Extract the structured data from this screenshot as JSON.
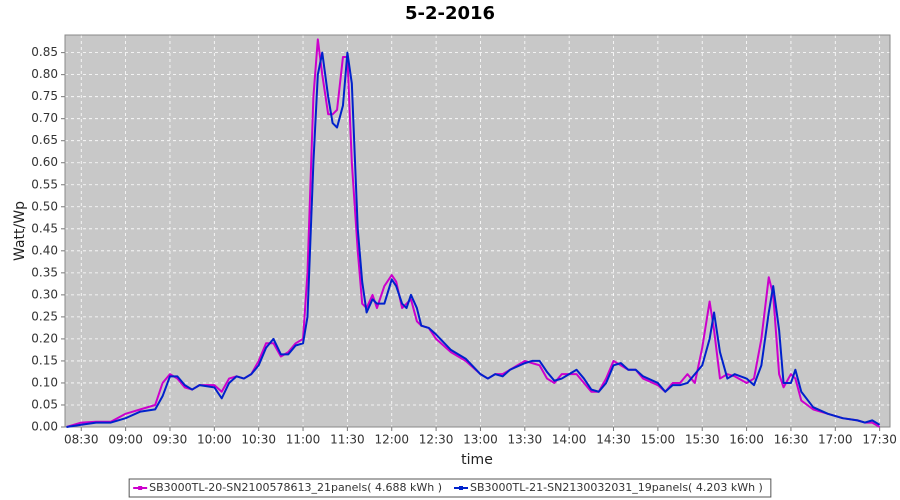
{
  "chart_data": {
    "type": "line",
    "title": "5-2-2016",
    "x_label": "time",
    "y_label": "Watt/Wp",
    "x": [
      "08:20",
      "08:30",
      "08:40",
      "08:50",
      "09:00",
      "09:10",
      "09:20",
      "09:25",
      "09:30",
      "09:35",
      "09:40",
      "09:45",
      "09:50",
      "10:00",
      "10:05",
      "10:10",
      "10:15",
      "10:20",
      "10:25",
      "10:30",
      "10:35",
      "10:40",
      "10:45",
      "10:50",
      "10:55",
      "11:00",
      "11:03",
      "11:07",
      "11:10",
      "11:13",
      "11:17",
      "11:20",
      "11:23",
      "11:27",
      "11:30",
      "11:33",
      "11:37",
      "11:40",
      "11:43",
      "11:47",
      "11:50",
      "11:55",
      "12:00",
      "12:03",
      "12:07",
      "12:10",
      "12:13",
      "12:17",
      "12:20",
      "12:25",
      "12:30",
      "12:40",
      "12:50",
      "13:00",
      "13:05",
      "13:10",
      "13:15",
      "13:20",
      "13:30",
      "13:35",
      "13:40",
      "13:45",
      "13:50",
      "13:55",
      "14:00",
      "14:05",
      "14:10",
      "14:15",
      "14:20",
      "14:25",
      "14:30",
      "14:35",
      "14:40",
      "14:45",
      "14:50",
      "15:00",
      "15:05",
      "15:10",
      "15:15",
      "15:20",
      "15:25",
      "15:30",
      "15:35",
      "15:38",
      "15:42",
      "15:47",
      "15:52",
      "16:00",
      "16:05",
      "16:10",
      "16:15",
      "16:18",
      "16:22",
      "16:25",
      "16:30",
      "16:33",
      "16:37",
      "16:45",
      "16:55",
      "17:05",
      "17:15",
      "17:20",
      "17:25",
      "17:30"
    ],
    "series": [
      {
        "name": "SB3000TL-20-SN2100578613_21panels( 4.688 kWh )",
        "color": "#cc00cc",
        "values": [
          0.0,
          0.01,
          0.012,
          0.012,
          0.03,
          0.04,
          0.05,
          0.1,
          0.12,
          0.11,
          0.09,
          0.085,
          0.095,
          0.095,
          0.08,
          0.11,
          0.115,
          0.11,
          0.12,
          0.15,
          0.19,
          0.19,
          0.16,
          0.17,
          0.19,
          0.2,
          0.35,
          0.75,
          0.88,
          0.8,
          0.71,
          0.71,
          0.72,
          0.84,
          0.84,
          0.6,
          0.4,
          0.28,
          0.27,
          0.3,
          0.27,
          0.32,
          0.345,
          0.33,
          0.27,
          0.28,
          0.29,
          0.24,
          0.23,
          0.225,
          0.2,
          0.17,
          0.15,
          0.12,
          0.11,
          0.12,
          0.12,
          0.13,
          0.15,
          0.145,
          0.14,
          0.11,
          0.1,
          0.12,
          0.12,
          0.12,
          0.1,
          0.08,
          0.08,
          0.11,
          0.15,
          0.14,
          0.13,
          0.13,
          0.11,
          0.095,
          0.08,
          0.1,
          0.1,
          0.12,
          0.1,
          0.18,
          0.285,
          0.22,
          0.11,
          0.12,
          0.115,
          0.1,
          0.11,
          0.2,
          0.34,
          0.3,
          0.12,
          0.09,
          0.12,
          0.11,
          0.06,
          0.04,
          0.03,
          0.02,
          0.015,
          0.01,
          0.01,
          0.0
        ]
      },
      {
        "name": "SB3000TL-21-SN2130032031_19panels( 4.203 kWh )",
        "color": "#0022cc",
        "values": [
          0.0,
          0.005,
          0.01,
          0.01,
          0.02,
          0.035,
          0.04,
          0.07,
          0.115,
          0.115,
          0.095,
          0.085,
          0.095,
          0.09,
          0.065,
          0.1,
          0.115,
          0.11,
          0.12,
          0.14,
          0.18,
          0.2,
          0.165,
          0.165,
          0.185,
          0.19,
          0.25,
          0.6,
          0.8,
          0.85,
          0.75,
          0.69,
          0.68,
          0.73,
          0.85,
          0.78,
          0.45,
          0.33,
          0.26,
          0.29,
          0.28,
          0.28,
          0.335,
          0.32,
          0.28,
          0.27,
          0.3,
          0.27,
          0.23,
          0.225,
          0.21,
          0.175,
          0.155,
          0.12,
          0.11,
          0.12,
          0.115,
          0.13,
          0.145,
          0.15,
          0.15,
          0.125,
          0.105,
          0.11,
          0.12,
          0.13,
          0.11,
          0.085,
          0.08,
          0.1,
          0.14,
          0.145,
          0.13,
          0.13,
          0.115,
          0.1,
          0.08,
          0.095,
          0.095,
          0.1,
          0.12,
          0.14,
          0.2,
          0.26,
          0.17,
          0.11,
          0.12,
          0.11,
          0.095,
          0.14,
          0.26,
          0.32,
          0.22,
          0.1,
          0.1,
          0.13,
          0.08,
          0.045,
          0.03,
          0.02,
          0.015,
          0.01,
          0.015,
          0.005
        ]
      }
    ],
    "xlim": [
      "08:19",
      "17:37"
    ],
    "xticks": [
      "08:30",
      "09:00",
      "09:30",
      "10:00",
      "10:30",
      "11:00",
      "11:30",
      "12:00",
      "12:30",
      "13:00",
      "13:30",
      "14:00",
      "14:30",
      "15:00",
      "15:30",
      "16:00",
      "16:30",
      "17:00",
      "17:30"
    ],
    "ylim": [
      0,
      0.89
    ],
    "yticks": [
      {
        "value": 0,
        "label": "0.00"
      },
      0.05,
      {
        "value": 0.1,
        "label": "0.10"
      },
      0.15,
      {
        "value": 0.2,
        "label": "0.20"
      },
      0.25,
      {
        "value": 0.3,
        "label": "0.30"
      },
      0.35,
      {
        "value": 0.4,
        "label": "0.40"
      },
      0.45,
      {
        "value": 0.5,
        "label": "0.50"
      },
      0.55,
      {
        "value": 0.6,
        "label": "0.60"
      },
      0.65,
      {
        "value": 0.7,
        "label": "0.70"
      },
      0.75,
      {
        "value": 0.8,
        "label": "0.80"
      },
      0.85
    ],
    "grid": true,
    "legend": "bottom"
  }
}
